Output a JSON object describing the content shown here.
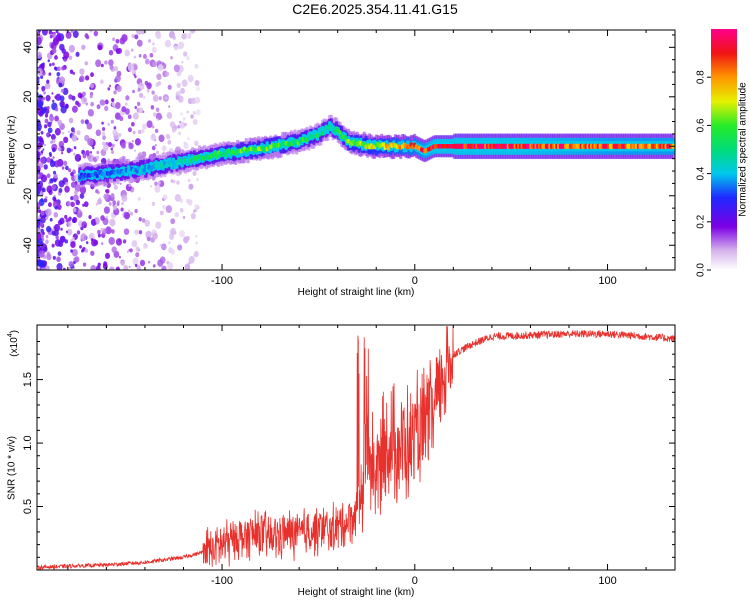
{
  "figure_title": "C2E6.2025.354.11.41.G15",
  "chart_data": [
    {
      "type": "heatmap",
      "title": "",
      "xlabel": "Height of straight line (km)",
      "ylabel": "Frequency (Hz)",
      "xlim": [
        -196,
        135
      ],
      "ylim": [
        -50,
        47
      ],
      "xticks": [
        -100,
        0,
        100
      ],
      "yticks": [
        -40,
        -20,
        0,
        20,
        40
      ],
      "grid": false,
      "colorbar": {
        "label": "Normalized spectral amplitude",
        "range": [
          0.0,
          1.0
        ],
        "ticks": [
          "0.0",
          "0.2",
          "0.4",
          "0.6",
          "0.8"
        ],
        "colormap": "white-violet-blue-cyan-green-yellow-orange-red-magenta"
      },
      "ridge": {
        "x": [
          -174,
          -160,
          -140,
          -120,
          -100,
          -80,
          -60,
          -50,
          -44,
          -40,
          -35,
          -30,
          -20,
          -10,
          0,
          5,
          10,
          20,
          40,
          60,
          80,
          100,
          120,
          134
        ],
        "freq_hz": [
          -12,
          -11,
          -9,
          -6,
          -3,
          -1,
          2,
          5,
          8,
          6,
          2,
          1,
          0,
          0,
          0,
          -2,
          0,
          0,
          0,
          0,
          0,
          0,
          0,
          0
        ],
        "peak_amplitude": [
          0.3,
          0.35,
          0.4,
          0.45,
          0.55,
          0.6,
          0.55,
          0.5,
          0.45,
          0.55,
          0.6,
          0.65,
          0.7,
          0.75,
          0.8,
          0.85,
          0.9,
          0.95,
          0.92,
          0.9,
          0.88,
          0.85,
          0.85,
          0.85
        ]
      },
      "noise_region_x": [
        -196,
        -112
      ],
      "noise_level": 0.12
    },
    {
      "type": "line",
      "title": "",
      "xlabel": "Height of straight line (km)",
      "ylabel": "SNR (10 * v/v)",
      "y_multiplier_label": "(x10",
      "y_multiplier_exp": "4",
      "xlim": [
        -196,
        135
      ],
      "ylim": [
        0,
        1.93
      ],
      "xticks": [
        -100,
        0,
        100
      ],
      "yticks": [
        0.5,
        1.0,
        1.5
      ],
      "ytick_labels": [
        "0.5",
        "1.0",
        "1.5"
      ],
      "grid": false,
      "line_color": "#e8302c",
      "series": [
        {
          "x": [
            -196,
            -180,
            -160,
            -140,
            -130,
            -120,
            -110,
            -100,
            -95,
            -90,
            -85,
            -80,
            -75,
            -70,
            -65,
            -60,
            -55,
            -50,
            -45,
            -40,
            -35,
            -30,
            -27,
            -25,
            -23,
            -20,
            -15,
            -10,
            -5,
            0,
            5,
            10,
            15,
            20,
            30,
            40,
            60,
            80,
            100,
            120,
            135
          ],
          "values": [
            0.02,
            0.03,
            0.04,
            0.06,
            0.08,
            0.1,
            0.14,
            0.2,
            0.24,
            0.26,
            0.27,
            0.28,
            0.26,
            0.27,
            0.29,
            0.28,
            0.3,
            0.32,
            0.31,
            0.34,
            0.38,
            0.45,
            0.7,
            1.05,
            0.85,
            0.75,
            0.95,
            1.0,
            0.95,
            1.05,
            1.1,
            1.25,
            1.55,
            1.7,
            1.78,
            1.84,
            1.85,
            1.86,
            1.86,
            1.84,
            1.82
          ]
        }
      ]
    }
  ]
}
